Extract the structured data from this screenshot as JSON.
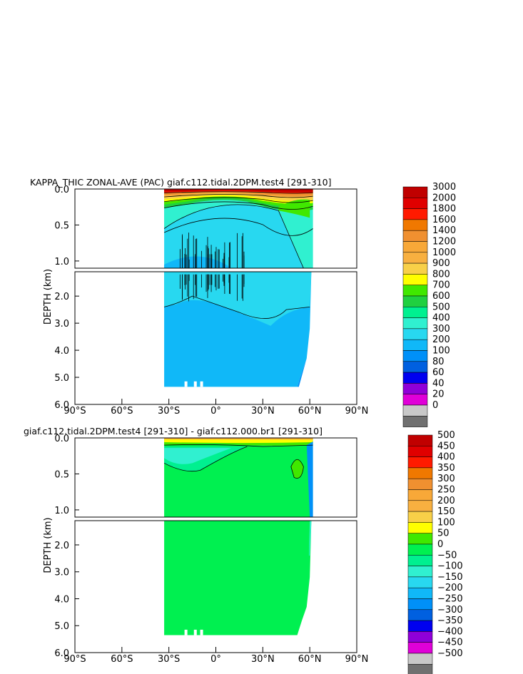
{
  "chart_data": [
    {
      "type": "heatmap",
      "title": "KAPPA_THIC ZONAL-AVE (PAC) giaf.c112.tidal.2DPM.test4 [291-310]",
      "ylabel": "DEPTH (km)",
      "x_ticks": [
        "90°S",
        "60°S",
        "30°S",
        "0°",
        "30°N",
        "60°N",
        "90°N"
      ],
      "y_ticks_upper": [
        "0.0",
        "0.5",
        "1.0"
      ],
      "y_ticks_lower": [
        "2.0",
        "3.0",
        "4.0",
        "5.0",
        "6.0"
      ],
      "colorbar": {
        "labels": [
          "3000",
          "2000",
          "1800",
          "1600",
          "1400",
          "1200",
          "1000",
          "900",
          "800",
          "700",
          "600",
          "500",
          "400",
          "300",
          "200",
          "100",
          "80",
          "60",
          "40",
          "20",
          "0"
        ],
        "colors": [
          "#c00000",
          "#e00000",
          "#ff1a00",
          "#f07800",
          "#f09030",
          "#f8a838",
          "#f8b040",
          "#f8d048",
          "#ffff00",
          "#40e800",
          "#20d040",
          "#00f090",
          "#30f0d0",
          "#28d8f0",
          "#10b8f8",
          "#0090f8",
          "#0060e0",
          "#0000f0",
          "#9000d8",
          "#e000d8",
          "#c8c8c8",
          "#707070"
        ]
      },
      "xlim": [
        -90,
        90
      ],
      "ylim": [
        6.0,
        0.0
      ]
    },
    {
      "type": "heatmap",
      "title": "giaf.c112.tidal.2DPM.test4 [291-310] - giaf.c112.000.br1 [291-310]",
      "ylabel": "DEPTH (km)",
      "x_ticks": [
        "90°S",
        "60°S",
        "30°S",
        "0°",
        "30°N",
        "60°N",
        "90°N"
      ],
      "y_ticks_upper": [
        "0.0",
        "0.5",
        "1.0"
      ],
      "y_ticks_lower": [
        "2.0",
        "3.0",
        "4.0",
        "5.0",
        "6.0"
      ],
      "colorbar": {
        "labels": [
          "500",
          "450",
          "400",
          "350",
          "300",
          "250",
          "200",
          "150",
          "100",
          "50",
          "0",
          "−50",
          "−100",
          "−150",
          "−200",
          "−250",
          "−300",
          "−350",
          "−400",
          "−450",
          "−500"
        ],
        "colors": [
          "#c00000",
          "#e00000",
          "#ff1a00",
          "#f07800",
          "#f09030",
          "#f8a838",
          "#f8b040",
          "#f8d048",
          "#ffff00",
          "#40e800",
          "#00f050",
          "#00f090",
          "#30f0d0",
          "#28d8f0",
          "#10b8f8",
          "#0090f8",
          "#0060e0",
          "#0000f0",
          "#9000d8",
          "#e000d8",
          "#c8c8c8",
          "#707070"
        ]
      },
      "xlim": [
        -90,
        90
      ],
      "ylim": [
        6.0,
        0.0
      ]
    }
  ]
}
